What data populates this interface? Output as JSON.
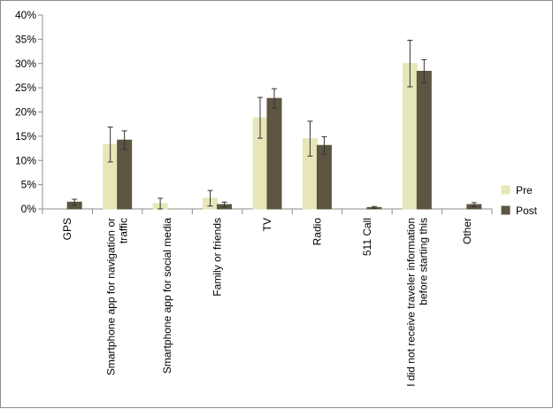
{
  "chart_data": {
    "type": "bar",
    "categories": [
      [
        "GPS"
      ],
      [
        "Smartphone app for navigation or",
        "traffic"
      ],
      [
        "Smartphone app for social media"
      ],
      [
        "Family or friends"
      ],
      [
        "TV"
      ],
      [
        "Radio"
      ],
      [
        "511 Call"
      ],
      [
        "I did not receive traveler information",
        "before starting this"
      ],
      [
        "Other"
      ]
    ],
    "series": [
      {
        "name": "Pre",
        "color": "#e6e6b8",
        "values": [
          0,
          13.3,
          1.1,
          2.2,
          18.8,
          14.5,
          0,
          30.0,
          0
        ],
        "err": [
          0,
          3.6,
          1.1,
          1.6,
          4.2,
          3.6,
          0,
          4.8,
          0
        ]
      },
      {
        "name": "Post",
        "color": "#5c5542",
        "values": [
          1.4,
          14.2,
          0,
          0.9,
          22.8,
          13.1,
          0.3,
          28.4,
          0.9
        ],
        "err": [
          0.6,
          1.9,
          0,
          0.5,
          2.0,
          1.8,
          0.2,
          2.4,
          0.4
        ]
      }
    ],
    "ylim": [
      0,
      40
    ],
    "yticks": [
      "0%",
      "5%",
      "10%",
      "15%",
      "20%",
      "25%",
      "30%",
      "35%",
      "40%"
    ],
    "ytick_values": [
      0,
      5,
      10,
      15,
      20,
      25,
      30,
      35,
      40
    ],
    "grid": false,
    "legend_position": "right"
  }
}
